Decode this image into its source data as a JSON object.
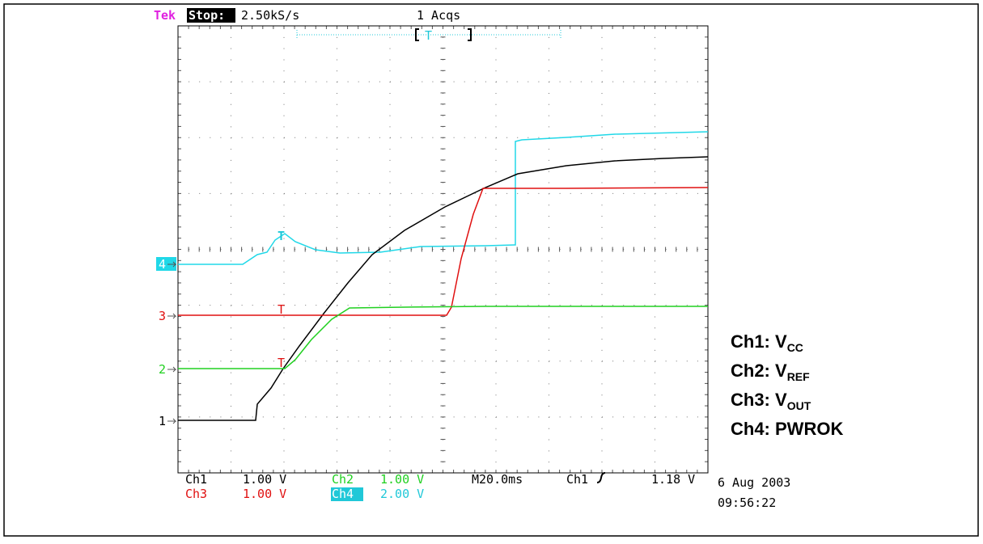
{
  "header": {
    "brand": "Tek",
    "state": "Stop:",
    "sample_rate": "2.50kS/s",
    "acquisitions": "1 Acqs",
    "trigger_mark": "T"
  },
  "markers": [
    "4",
    "3",
    "2",
    "1"
  ],
  "settings": {
    "row1": [
      "Ch1",
      "1.00 V",
      "Ch2",
      "1.00 V",
      "M20.0ms",
      "Ch1",
      "1.18 V"
    ],
    "row2": [
      "Ch3",
      "1.00 V",
      "Ch4",
      "2.00 V"
    ]
  },
  "timestamp": {
    "date": "6 Aug 2003",
    "time": "09:56:22"
  },
  "legend": [
    {
      "label": "Ch1: V",
      "subscript": "CC"
    },
    {
      "label": "Ch2: V",
      "subscript": "REF"
    },
    {
      "label": "Ch3: V",
      "subscript": "OUT"
    },
    {
      "label": "Ch4: PWROK",
      "subscript": null
    }
  ]
}
